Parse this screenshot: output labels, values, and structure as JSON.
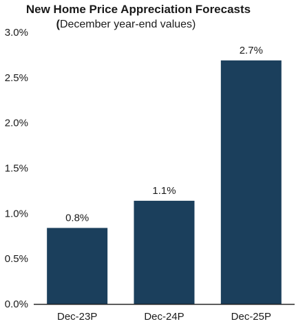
{
  "chart_data": {
    "type": "bar",
    "title": "New Home Price Appreciation Forecasts",
    "subtitle_open": "(",
    "subtitle": "December year-end values)",
    "categories": [
      "Dec-23P",
      "Dec-24P",
      "Dec-25P"
    ],
    "values": [
      0.84,
      1.14,
      2.69
    ],
    "data_labels": [
      "0.8%",
      "1.1%",
      "2.7%"
    ],
    "ylim": [
      0,
      3.0
    ],
    "yticks": [
      0,
      0.5,
      1.0,
      1.5,
      2.0,
      2.5,
      3.0
    ],
    "ytick_labels": [
      "0.0%",
      "0.5%",
      "1.0%",
      "1.5%",
      "2.0%",
      "2.5%",
      "3.0%"
    ],
    "xlabel": "",
    "ylabel": "",
    "grid": false,
    "legend": "none",
    "bar_color": "#1b3f5c"
  }
}
